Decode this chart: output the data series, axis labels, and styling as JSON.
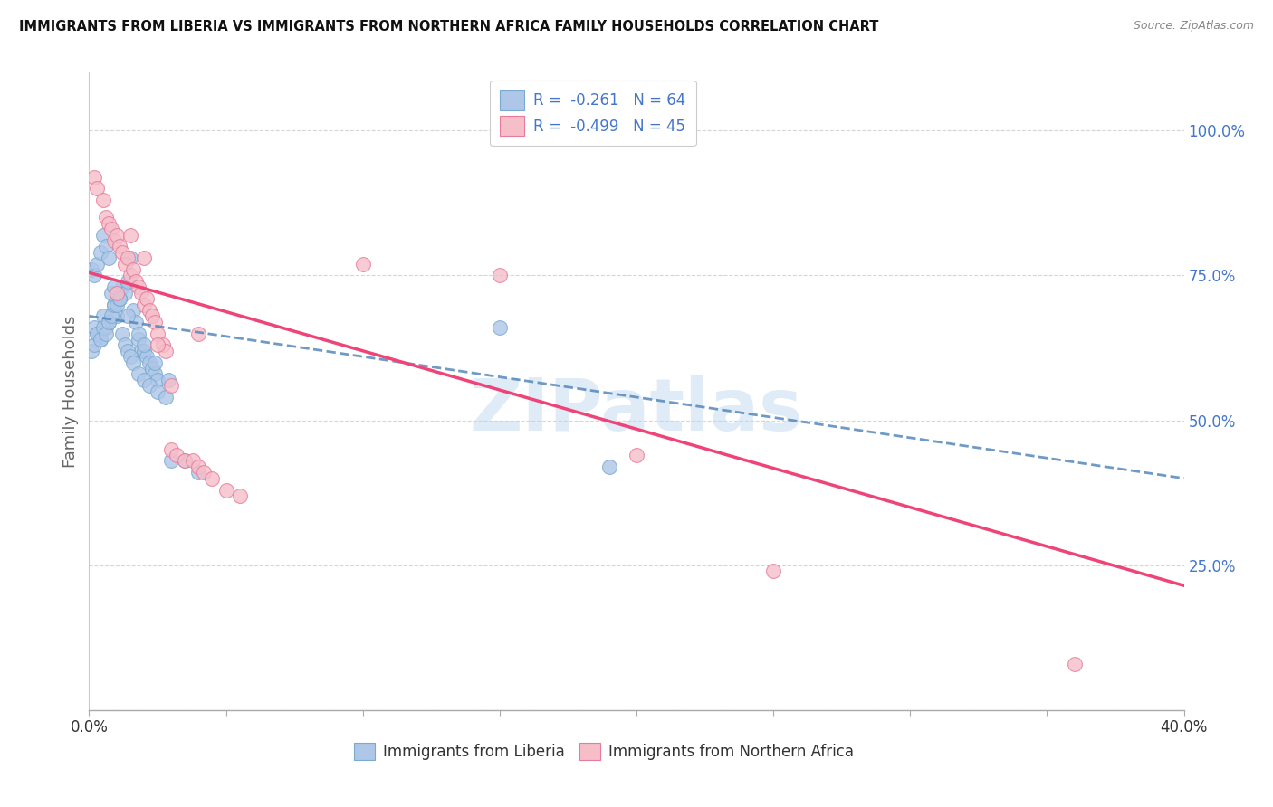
{
  "title": "IMMIGRANTS FROM LIBERIA VS IMMIGRANTS FROM NORTHERN AFRICA FAMILY HOUSEHOLDS CORRELATION CHART",
  "source": "Source: ZipAtlas.com",
  "ylabel": "Family Households",
  "yticks": [
    0.0,
    0.25,
    0.5,
    0.75,
    1.0
  ],
  "ytick_labels": [
    "",
    "25.0%",
    "50.0%",
    "75.0%",
    "100.0%"
  ],
  "xlim": [
    0.0,
    0.4
  ],
  "ylim": [
    0.0,
    1.1
  ],
  "legend_line1": "R =  -0.261   N = 64",
  "legend_line2": "R =  -0.499   N = 45",
  "color_blue_fill": "#aec6e8",
  "color_pink_fill": "#f5bec9",
  "color_blue_edge": "#7aaad0",
  "color_pink_edge": "#e87a9a",
  "color_blue_line": "#5588bb",
  "color_pink_line": "#ee4477",
  "color_text_blue": "#4477cc",
  "color_text_dark": "#333333",
  "color_grid": "#cccccc",
  "color_bg": "#ffffff",
  "watermark": "ZIPatlas",
  "blue_scatter_x": [
    0.002,
    0.003,
    0.004,
    0.005,
    0.006,
    0.007,
    0.008,
    0.009,
    0.01,
    0.011,
    0.012,
    0.013,
    0.014,
    0.015,
    0.016,
    0.017,
    0.018,
    0.019,
    0.02,
    0.021,
    0.022,
    0.023,
    0.024,
    0.025,
    0.001,
    0.002,
    0.003,
    0.004,
    0.005,
    0.006,
    0.007,
    0.008,
    0.009,
    0.01,
    0.011,
    0.012,
    0.013,
    0.014,
    0.015,
    0.016,
    0.018,
    0.02,
    0.022,
    0.025,
    0.028,
    0.001,
    0.002,
    0.003,
    0.004,
    0.005,
    0.006,
    0.007,
    0.009,
    0.011,
    0.014,
    0.018,
    0.02,
    0.024,
    0.029,
    0.03,
    0.035,
    0.04,
    0.19,
    0.15
  ],
  "blue_scatter_y": [
    0.66,
    0.65,
    0.64,
    0.68,
    0.66,
    0.67,
    0.72,
    0.7,
    0.68,
    0.71,
    0.73,
    0.72,
    0.74,
    0.78,
    0.69,
    0.67,
    0.64,
    0.62,
    0.62,
    0.61,
    0.6,
    0.59,
    0.58,
    0.57,
    0.62,
    0.63,
    0.65,
    0.64,
    0.66,
    0.65,
    0.67,
    0.68,
    0.7,
    0.7,
    0.71,
    0.65,
    0.63,
    0.62,
    0.61,
    0.6,
    0.58,
    0.57,
    0.56,
    0.55,
    0.54,
    0.76,
    0.75,
    0.77,
    0.79,
    0.82,
    0.8,
    0.78,
    0.73,
    0.71,
    0.68,
    0.65,
    0.63,
    0.6,
    0.57,
    0.43,
    0.43,
    0.41,
    0.42,
    0.66
  ],
  "pink_scatter_x": [
    0.002,
    0.003,
    0.005,
    0.006,
    0.007,
    0.008,
    0.009,
    0.01,
    0.011,
    0.012,
    0.013,
    0.014,
    0.015,
    0.016,
    0.017,
    0.018,
    0.019,
    0.02,
    0.021,
    0.022,
    0.023,
    0.024,
    0.025,
    0.027,
    0.028,
    0.03,
    0.032,
    0.035,
    0.038,
    0.04,
    0.042,
    0.045,
    0.05,
    0.055,
    0.01,
    0.015,
    0.02,
    0.025,
    0.03,
    0.1,
    0.15,
    0.2,
    0.25,
    0.36,
    0.04
  ],
  "pink_scatter_y": [
    0.92,
    0.9,
    0.88,
    0.85,
    0.84,
    0.83,
    0.81,
    0.82,
    0.8,
    0.79,
    0.77,
    0.78,
    0.75,
    0.76,
    0.74,
    0.73,
    0.72,
    0.7,
    0.71,
    0.69,
    0.68,
    0.67,
    0.65,
    0.63,
    0.62,
    0.45,
    0.44,
    0.43,
    0.43,
    0.42,
    0.41,
    0.4,
    0.38,
    0.37,
    0.72,
    0.82,
    0.78,
    0.63,
    0.56,
    0.77,
    0.75,
    0.44,
    0.24,
    0.08,
    0.65
  ],
  "blue_trend_x": [
    0.0,
    0.4
  ],
  "blue_trend_y": [
    0.68,
    0.4
  ],
  "pink_trend_x": [
    0.0,
    0.4
  ],
  "pink_trend_y": [
    0.755,
    0.215
  ],
  "xticks": [
    0.0,
    0.05,
    0.1,
    0.15,
    0.2,
    0.25,
    0.3,
    0.35,
    0.4
  ],
  "xtick_labels": [
    "0.0%",
    "",
    "",
    "",
    "",
    "",
    "",
    "",
    "40.0%"
  ]
}
